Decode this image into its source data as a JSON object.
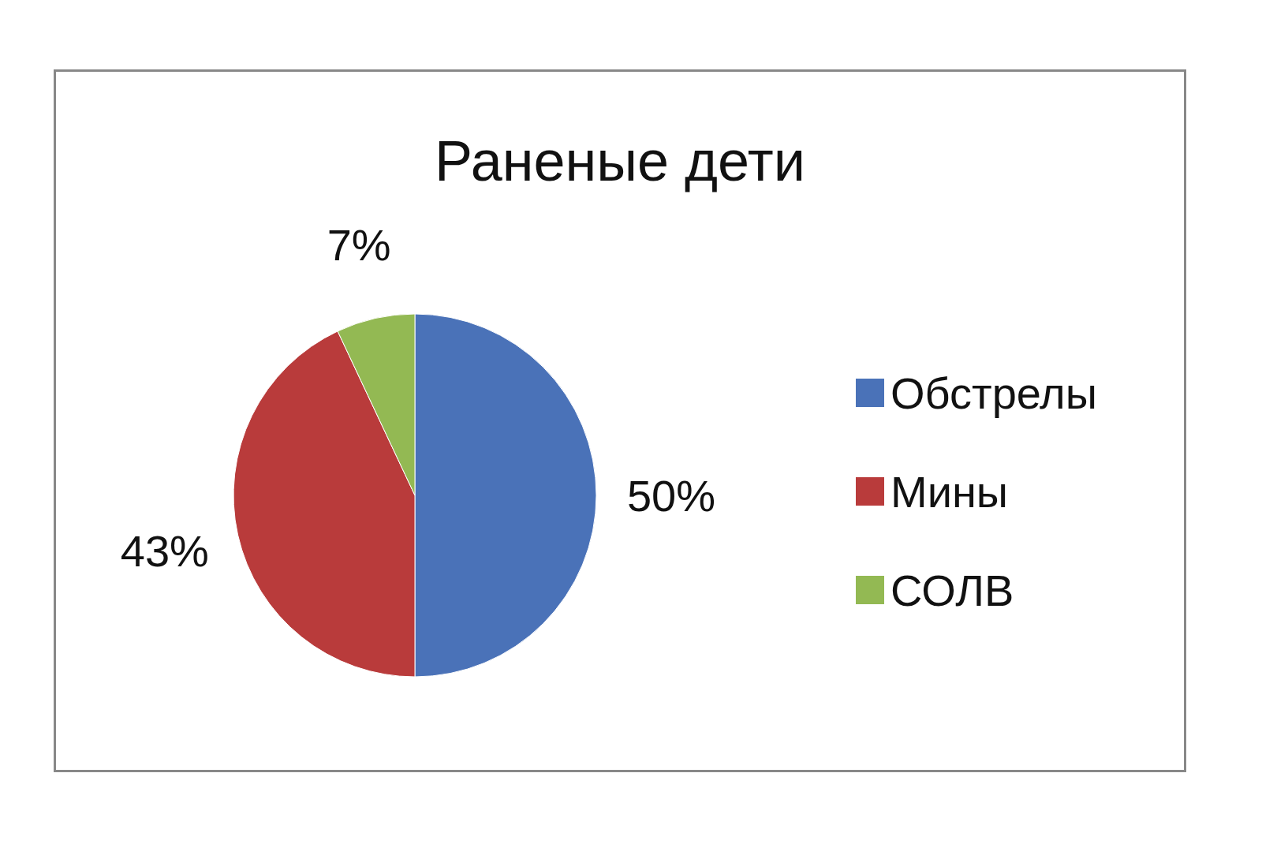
{
  "chart_data": {
    "type": "pie",
    "title": "Раненые дети",
    "categories": [
      "Обстрелы",
      "Мины",
      "СОЛВ"
    ],
    "values": [
      50,
      43,
      7
    ],
    "colors": [
      "#4a72b8",
      "#b93b3b",
      "#93b953"
    ],
    "value_labels": [
      "50%",
      "43%",
      "7%"
    ],
    "legend": "right"
  }
}
